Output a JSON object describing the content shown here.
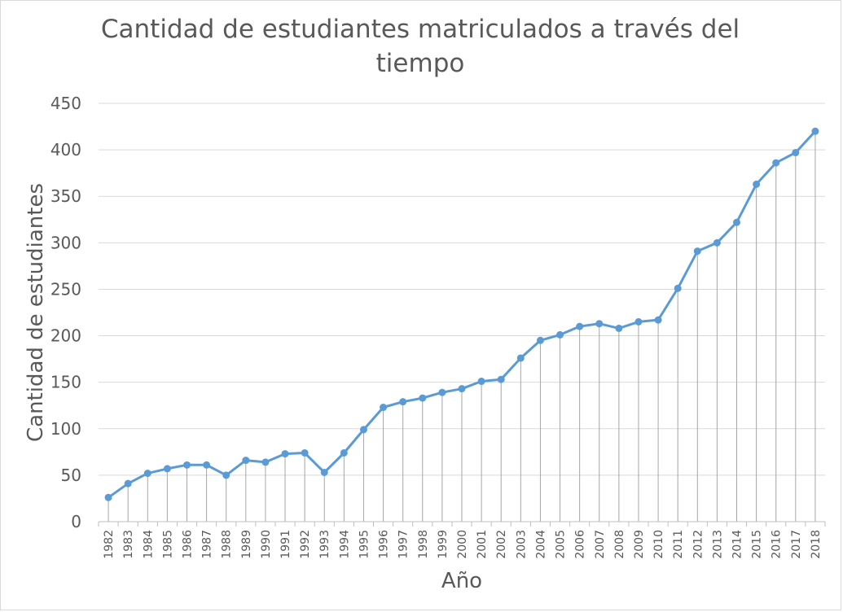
{
  "chart_data": {
    "type": "line",
    "title": "Cantidad de estudiantes matriculados a través del tiempo",
    "xlabel": "Año",
    "ylabel": "Cantidad de estudiantes",
    "ylim": [
      0,
      450
    ],
    "yticks": [
      0,
      50,
      100,
      150,
      200,
      250,
      300,
      350,
      400,
      450
    ],
    "grid": true,
    "drop_lines": true,
    "markers": true,
    "legend": "none",
    "line_color": "#5b9bd5",
    "categories": [
      "1982",
      "1983",
      "1984",
      "1985",
      "1986",
      "1987",
      "1988",
      "1989",
      "1990",
      "1991",
      "1992",
      "1993",
      "1994",
      "1995",
      "1996",
      "1997",
      "1998",
      "1999",
      "2000",
      "2001",
      "2002",
      "2003",
      "2004",
      "2005",
      "2006",
      "2007",
      "2008",
      "2009",
      "2010",
      "2011",
      "2012",
      "2013",
      "2014",
      "2015",
      "2016",
      "2017",
      "2018"
    ],
    "values": [
      26,
      41,
      52,
      57,
      61,
      61,
      50,
      66,
      64,
      73,
      74,
      53,
      74,
      99,
      123,
      129,
      133,
      139,
      143,
      151,
      153,
      176,
      195,
      201,
      210,
      213,
      208,
      215,
      217,
      251,
      291,
      300,
      322,
      363,
      386,
      397,
      420
    ]
  }
}
